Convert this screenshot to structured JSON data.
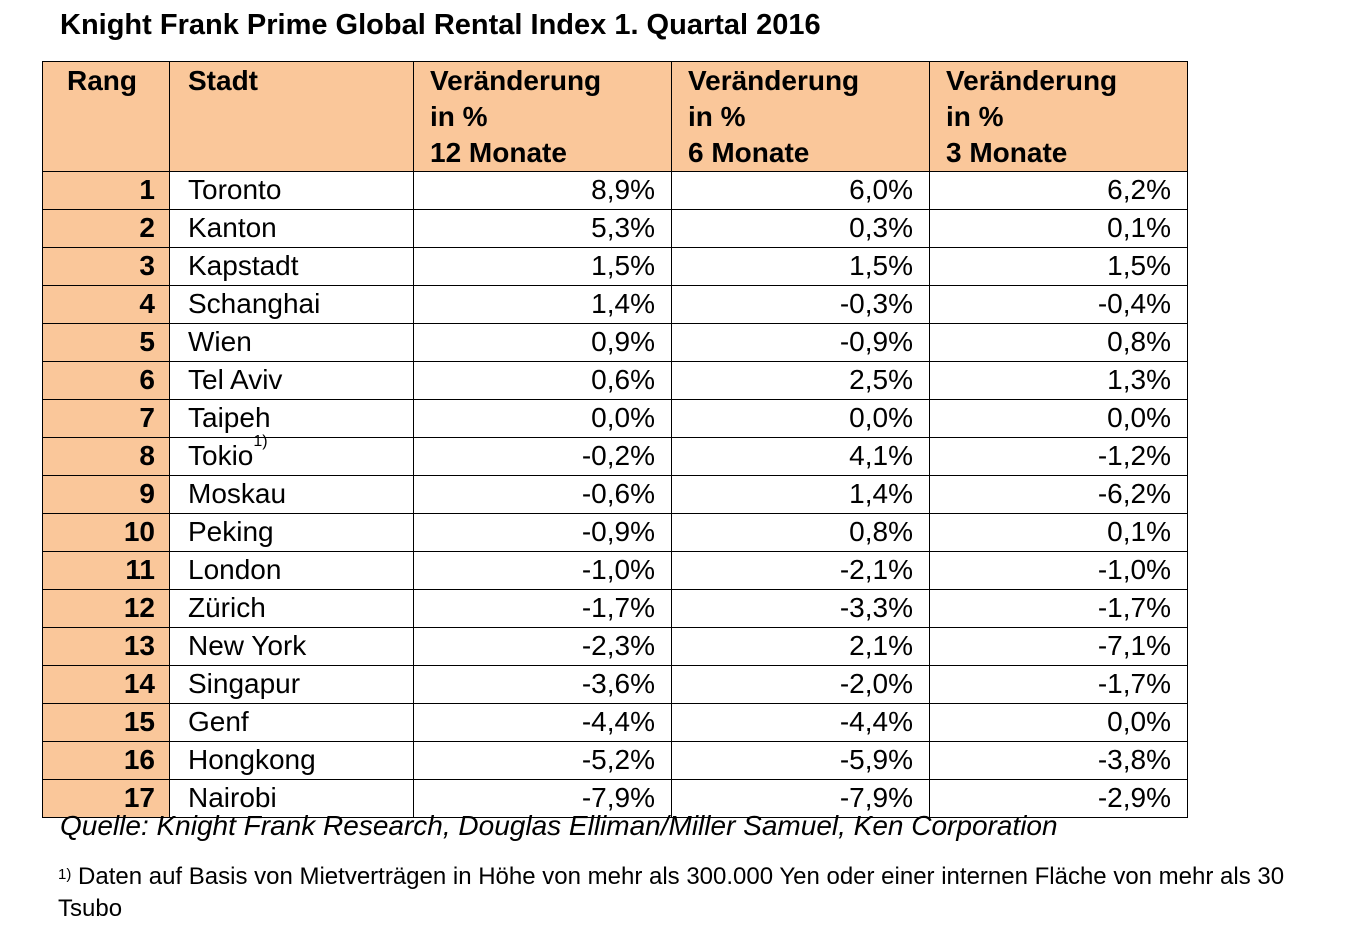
{
  "title": "Knight Frank Prime Global Rental Index 1. Quartal 2016",
  "table": {
    "headers": {
      "rank": "Rang",
      "city": "Stadt",
      "change_12": [
        "Veränderung",
        "in %",
        "12 Monate"
      ],
      "change_6": [
        "Veränderung",
        "in %",
        "6 Monate"
      ],
      "change_3": [
        "Veränderung",
        "in %",
        "3 Monate"
      ]
    },
    "rows": [
      {
        "rank": "1",
        "city": "Toronto",
        "footnote": "",
        "m12": "8,9%",
        "m6": "6,0%",
        "m3": "6,2%"
      },
      {
        "rank": "2",
        "city": "Kanton",
        "footnote": "",
        "m12": "5,3%",
        "m6": "0,3%",
        "m3": "0,1%"
      },
      {
        "rank": "3",
        "city": "Kapstadt",
        "footnote": "",
        "m12": "1,5%",
        "m6": "1,5%",
        "m3": "1,5%"
      },
      {
        "rank": "4",
        "city": "Schanghai",
        "footnote": "",
        "m12": "1,4%",
        "m6": "-0,3%",
        "m3": "-0,4%"
      },
      {
        "rank": "5",
        "city": "Wien",
        "footnote": "",
        "m12": "0,9%",
        "m6": "-0,9%",
        "m3": "0,8%"
      },
      {
        "rank": "6",
        "city": "Tel Aviv",
        "footnote": "",
        "m12": "0,6%",
        "m6": "2,5%",
        "m3": "1,3%"
      },
      {
        "rank": "7",
        "city": "Taipeh",
        "footnote": "",
        "m12": "0,0%",
        "m6": "0,0%",
        "m3": "0,0%"
      },
      {
        "rank": "8",
        "city": "Tokio",
        "footnote": "1)",
        "m12": "-0,2%",
        "m6": "4,1%",
        "m3": "-1,2%"
      },
      {
        "rank": "9",
        "city": "Moskau",
        "footnote": "",
        "m12": "-0,6%",
        "m6": "1,4%",
        "m3": "-6,2%"
      },
      {
        "rank": "10",
        "city": "Peking",
        "footnote": "",
        "m12": "-0,9%",
        "m6": "0,8%",
        "m3": "0,1%"
      },
      {
        "rank": "11",
        "city": "London",
        "footnote": "",
        "m12": "-1,0%",
        "m6": "-2,1%",
        "m3": "-1,0%"
      },
      {
        "rank": "12",
        "city": "Zürich",
        "footnote": "",
        "m12": "-1,7%",
        "m6": "-3,3%",
        "m3": "-1,7%"
      },
      {
        "rank": "13",
        "city": "New York",
        "footnote": "",
        "m12": "-2,3%",
        "m6": "2,1%",
        "m3": "-7,1%"
      },
      {
        "rank": "14",
        "city": "Singapur",
        "footnote": "",
        "m12": "-3,6%",
        "m6": "-2,0%",
        "m3": "-1,7%"
      },
      {
        "rank": "15",
        "city": "Genf",
        "footnote": "",
        "m12": "-4,4%",
        "m6": "-4,4%",
        "m3": "0,0%"
      },
      {
        "rank": "16",
        "city": "Hongkong",
        "footnote": "",
        "m12": "-5,2%",
        "m6": "-5,9%",
        "m3": "-3,8%"
      },
      {
        "rank": "17",
        "city": "Nairobi",
        "footnote": "",
        "m12": "-7,9%",
        "m6": "-7,9%",
        "m3": "-2,9%"
      }
    ]
  },
  "source": "Quelle: Knight Frank Research, Douglas Elliman/Miller Samuel, Ken Corporation",
  "footnote": {
    "marker": "1)",
    "text": "Daten auf Basis von Mietverträgen in Höhe von mehr als 300.000 Yen oder einer internen Fläche von mehr als 30 Tsubo"
  },
  "colors": {
    "header_fill": "#fac79a",
    "rank_fill": "#fac79a",
    "border": "#000000"
  }
}
